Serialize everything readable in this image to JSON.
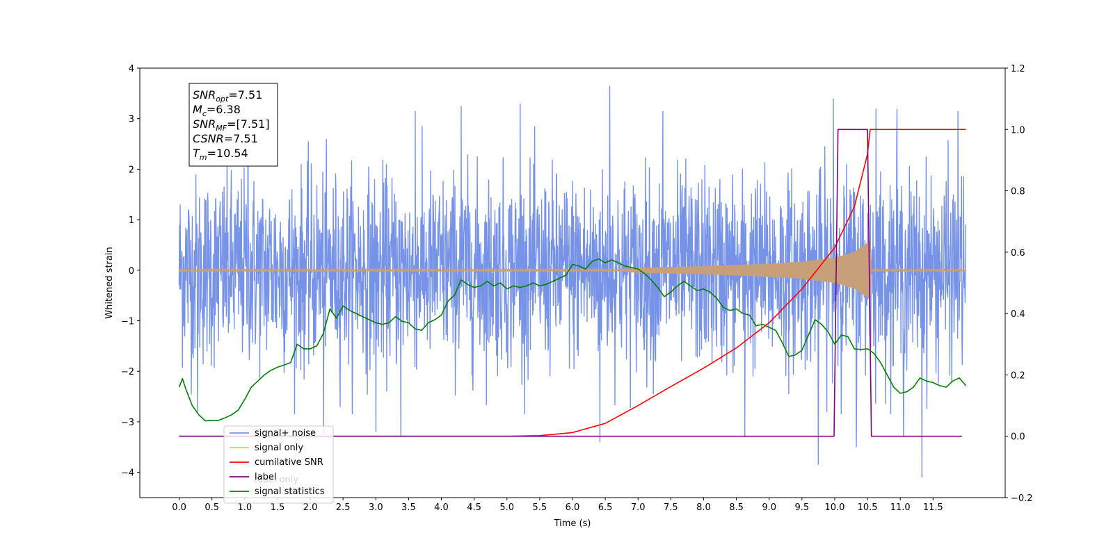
{
  "chart_data": {
    "type": "line",
    "xlabel": "Time (s)",
    "ylabel": "Whitened strain",
    "xlim": [
      -0.6,
      12.6
    ],
    "ylim": [
      -4.5,
      4
    ],
    "y2lim": [
      -0.2,
      1.2
    ],
    "grid": false,
    "x_ticks": [
      "0.0",
      "0.5",
      "1.0",
      "1.5",
      "2.0",
      "2.5",
      "3.0",
      "3.5",
      "4.0",
      "4.5",
      "5.0",
      "5.5",
      "6.0",
      "6.5",
      "7.0",
      "7.5",
      "8.0",
      "8.5",
      "9.0",
      "9.5",
      "10.0",
      "10.5",
      "11.0",
      "11.5"
    ],
    "y_ticks": [
      "4",
      "3",
      "2",
      "1",
      "0",
      "−1",
      "−2",
      "−3",
      "−4"
    ],
    "y2_ticks": [
      "1.2",
      "1.0",
      "0.8",
      "0.6",
      "0.4",
      "0.2",
      "0.0",
      "−0.2"
    ],
    "annotation": {
      "lines": [
        {
          "sym": "SNR",
          "sub": "opt",
          "val": "=7.51"
        },
        {
          "sym": "M",
          "sub": "c",
          "val": "=6.38"
        },
        {
          "sym": "SNR",
          "sub": "MF",
          "val": "=[7.51]"
        },
        {
          "sym": "CSNR",
          "sub": "",
          "val": "=7.51"
        },
        {
          "sym": "T",
          "sub": "m",
          "val": "=10.54"
        }
      ]
    },
    "legend": {
      "placement": "lower-left",
      "entries": [
        "signal+ noise",
        "signal only",
        "cumilative SNR",
        "label",
        "signal statistics",
        "label only"
      ]
    },
    "series": [
      {
        "name": "signal+ noise",
        "axis": "left",
        "color": "#7793e8",
        "kind": "noise",
        "x_range": [
          0.0,
          12.0
        ],
        "envelope": {
          "typical": 1.2,
          "min": -4.1,
          "max": 3.65
        },
        "spikes": [
          {
            "x": 6.57,
            "y": 3.65
          },
          {
            "x": 9.75,
            "y": -3.85
          },
          {
            "x": 11.33,
            "y": -4.1
          },
          {
            "x": 10.33,
            "y": -3.5
          },
          {
            "x": 11.05,
            "y": -3.3
          },
          {
            "x": 6.42,
            "y": -3.4
          },
          {
            "x": 8.63,
            "y": -3.3
          },
          {
            "x": 3.38,
            "y": -3.3
          },
          {
            "x": 3.0,
            "y": -3.2
          },
          {
            "x": 2.2,
            "y": -3.25
          },
          {
            "x": 7.38,
            "y": 3.15
          },
          {
            "x": 9.98,
            "y": 3.4
          },
          {
            "x": 5.2,
            "y": 3.3
          },
          {
            "x": 4.3,
            "y": 3.25
          },
          {
            "x": 1.05,
            "y": 3.1
          },
          {
            "x": 3.6,
            "y": 3.15
          },
          {
            "x": 10.63,
            "y": 3.2
          },
          {
            "x": 11.88,
            "y": 3.15
          },
          {
            "x": 0.28,
            "y": -2.8
          },
          {
            "x": 10.95,
            "y": 3.2
          }
        ]
      },
      {
        "name": "signal only",
        "axis": "left",
        "color": "#c7a07a",
        "kind": "chirp",
        "x_range": [
          0.0,
          12.0
        ],
        "merger_time": 10.54,
        "envelope_points": [
          [
            0,
            0.01
          ],
          [
            6.6,
            0.01
          ],
          [
            7.0,
            0.05
          ],
          [
            8.0,
            0.08
          ],
          [
            9.0,
            0.13
          ],
          [
            9.5,
            0.17
          ],
          [
            10.0,
            0.25
          ],
          [
            10.3,
            0.36
          ],
          [
            10.54,
            0.58
          ],
          [
            10.56,
            0.01
          ],
          [
            12.0,
            0.01
          ]
        ]
      },
      {
        "name": "cumilative SNR",
        "axis": "right",
        "color": "#ff0000",
        "points": [
          [
            0.0,
            0.0
          ],
          [
            5.0,
            0.0
          ],
          [
            5.5,
            0.002
          ],
          [
            6.0,
            0.012
          ],
          [
            6.5,
            0.042
          ],
          [
            7.0,
            0.1
          ],
          [
            7.5,
            0.162
          ],
          [
            8.0,
            0.222
          ],
          [
            8.5,
            0.288
          ],
          [
            9.0,
            0.37
          ],
          [
            9.5,
            0.48
          ],
          [
            10.0,
            0.615
          ],
          [
            10.3,
            0.748
          ],
          [
            10.5,
            0.92
          ],
          [
            10.54,
            1.0
          ],
          [
            12.0,
            1.0
          ]
        ]
      },
      {
        "name": "label",
        "axis": "right",
        "color": "#7f007f",
        "points": [
          [
            0.0,
            0.0
          ],
          [
            9.99,
            0.0
          ],
          [
            10.05,
            1.0
          ],
          [
            10.5,
            1.0
          ],
          [
            10.56,
            0.0
          ],
          [
            11.94,
            0.0
          ]
        ]
      },
      {
        "name": "signal statistics",
        "axis": "right",
        "color": "#008000",
        "points": [
          [
            0.0,
            0.16
          ],
          [
            0.05,
            0.188
          ],
          [
            0.1,
            0.155
          ],
          [
            0.2,
            0.1
          ],
          [
            0.3,
            0.07
          ],
          [
            0.4,
            0.05
          ],
          [
            0.5,
            0.052
          ],
          [
            0.6,
            0.052
          ],
          [
            0.7,
            0.06
          ],
          [
            0.8,
            0.07
          ],
          [
            0.9,
            0.085
          ],
          [
            1.0,
            0.12
          ],
          [
            1.1,
            0.16
          ],
          [
            1.2,
            0.18
          ],
          [
            1.3,
            0.2
          ],
          [
            1.4,
            0.215
          ],
          [
            1.5,
            0.225
          ],
          [
            1.6,
            0.232
          ],
          [
            1.7,
            0.24
          ],
          [
            1.8,
            0.3
          ],
          [
            1.9,
            0.285
          ],
          [
            2.0,
            0.285
          ],
          [
            2.1,
            0.295
          ],
          [
            2.2,
            0.335
          ],
          [
            2.3,
            0.415
          ],
          [
            2.4,
            0.385
          ],
          [
            2.5,
            0.425
          ],
          [
            2.6,
            0.41
          ],
          [
            2.7,
            0.4
          ],
          [
            2.8,
            0.39
          ],
          [
            2.9,
            0.38
          ],
          [
            3.0,
            0.37
          ],
          [
            3.1,
            0.365
          ],
          [
            3.2,
            0.37
          ],
          [
            3.3,
            0.39
          ],
          [
            3.4,
            0.375
          ],
          [
            3.5,
            0.37
          ],
          [
            3.6,
            0.35
          ],
          [
            3.7,
            0.345
          ],
          [
            3.8,
            0.37
          ],
          [
            3.9,
            0.38
          ],
          [
            4.0,
            0.395
          ],
          [
            4.1,
            0.44
          ],
          [
            4.2,
            0.46
          ],
          [
            4.3,
            0.51
          ],
          [
            4.4,
            0.495
          ],
          [
            4.5,
            0.485
          ],
          [
            4.6,
            0.49
          ],
          [
            4.7,
            0.505
          ],
          [
            4.8,
            0.49
          ],
          [
            4.9,
            0.5
          ],
          [
            5.0,
            0.48
          ],
          [
            5.1,
            0.49
          ],
          [
            5.2,
            0.485
          ],
          [
            5.3,
            0.49
          ],
          [
            5.4,
            0.5
          ],
          [
            5.5,
            0.49
          ],
          [
            5.6,
            0.495
          ],
          [
            5.7,
            0.505
          ],
          [
            5.8,
            0.515
          ],
          [
            5.9,
            0.525
          ],
          [
            6.0,
            0.56
          ],
          [
            6.1,
            0.555
          ],
          [
            6.2,
            0.545
          ],
          [
            6.3,
            0.57
          ],
          [
            6.4,
            0.578
          ],
          [
            6.5,
            0.565
          ],
          [
            6.6,
            0.575
          ],
          [
            6.7,
            0.565
          ],
          [
            6.8,
            0.555
          ],
          [
            6.9,
            0.55
          ],
          [
            7.0,
            0.545
          ],
          [
            7.1,
            0.53
          ],
          [
            7.2,
            0.51
          ],
          [
            7.3,
            0.485
          ],
          [
            7.4,
            0.455
          ],
          [
            7.5,
            0.47
          ],
          [
            7.6,
            0.49
          ],
          [
            7.7,
            0.505
          ],
          [
            7.8,
            0.49
          ],
          [
            7.9,
            0.475
          ],
          [
            8.0,
            0.48
          ],
          [
            8.1,
            0.47
          ],
          [
            8.2,
            0.45
          ],
          [
            8.3,
            0.42
          ],
          [
            8.4,
            0.41
          ],
          [
            8.5,
            0.415
          ],
          [
            8.6,
            0.4
          ],
          [
            8.7,
            0.395
          ],
          [
            8.8,
            0.36
          ],
          [
            8.9,
            0.365
          ],
          [
            9.0,
            0.355
          ],
          [
            9.1,
            0.345
          ],
          [
            9.2,
            0.305
          ],
          [
            9.3,
            0.26
          ],
          [
            9.4,
            0.265
          ],
          [
            9.5,
            0.28
          ],
          [
            9.6,
            0.33
          ],
          [
            9.7,
            0.38
          ],
          [
            9.8,
            0.365
          ],
          [
            9.9,
            0.34
          ],
          [
            10.0,
            0.3
          ],
          [
            10.1,
            0.33
          ],
          [
            10.2,
            0.325
          ],
          [
            10.3,
            0.285
          ],
          [
            10.4,
            0.283
          ],
          [
            10.5,
            0.285
          ],
          [
            10.6,
            0.27
          ],
          [
            10.7,
            0.24
          ],
          [
            10.8,
            0.2
          ],
          [
            10.9,
            0.16
          ],
          [
            11.0,
            0.14
          ],
          [
            11.1,
            0.145
          ],
          [
            11.2,
            0.16
          ],
          [
            11.3,
            0.19
          ],
          [
            11.4,
            0.18
          ],
          [
            11.5,
            0.175
          ],
          [
            11.6,
            0.165
          ],
          [
            11.7,
            0.16
          ],
          [
            11.8,
            0.18
          ],
          [
            11.9,
            0.19
          ],
          [
            12.0,
            0.165
          ]
        ]
      }
    ]
  }
}
